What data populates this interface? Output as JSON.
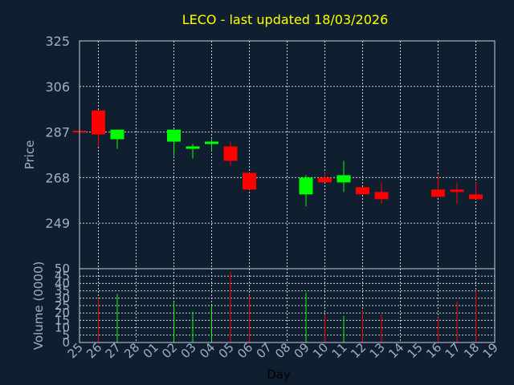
{
  "chart_data": {
    "type": "candlestick",
    "title": "LECO - last updated 18/03/2026",
    "xlabel": "Day",
    "ylabel": "Price",
    "volume_label": "Volume (0000)",
    "ylim": [
      230,
      325
    ],
    "price_ticks": [
      "325",
      "306",
      "287",
      "268",
      "249"
    ],
    "price_tick_values": [
      325,
      306,
      287,
      268,
      249
    ],
    "volume_ylim": [
      0,
      50
    ],
    "volume_ticks": [
      "50",
      "45",
      "40",
      "35",
      "30",
      "25",
      "20",
      "15",
      "10",
      "5",
      "0"
    ],
    "volume_tick_values": [
      50,
      45,
      40,
      35,
      30,
      25,
      20,
      15,
      10,
      5,
      0
    ],
    "x_labels": [
      "25",
      "26",
      "27",
      "28",
      "01",
      "02",
      "03",
      "04",
      "05",
      "06",
      "07",
      "08",
      "09",
      "10",
      "11",
      "12",
      "13",
      "14",
      "15",
      "16",
      "17",
      "18",
      "19"
    ],
    "grid": true,
    "colors": {
      "up": "#00ff00",
      "down": "#ff0000",
      "title": "#ffff00",
      "text": "#9ab2cc",
      "grid": "#c8d2dc",
      "background": "#0f1f30"
    },
    "candles": [
      {
        "x": "25",
        "open": 287.5,
        "high": 287.5,
        "low": 287.5,
        "close": 287.0,
        "volume": 0
      },
      {
        "x": "26",
        "open": 296,
        "high": 296,
        "low": 281,
        "close": 286,
        "volume": 30
      },
      {
        "x": "27",
        "open": 284,
        "high": 288,
        "low": 280,
        "close": 288,
        "volume": 33
      },
      {
        "x": "02",
        "open": 283,
        "high": 288,
        "low": 277,
        "close": 288,
        "volume": 27
      },
      {
        "x": "03",
        "open": 280,
        "high": 282,
        "low": 276,
        "close": 281,
        "volume": 21
      },
      {
        "x": "04",
        "open": 282,
        "high": 284,
        "low": 279,
        "close": 283,
        "volume": 25
      },
      {
        "x": "05",
        "open": 281,
        "high": 283,
        "low": 273,
        "close": 275,
        "volume": 48
      },
      {
        "x": "06",
        "open": 270,
        "high": 270,
        "low": 263,
        "close": 263,
        "volume": 32
      },
      {
        "x": "09",
        "open": 261,
        "high": 269,
        "low": 256,
        "close": 268,
        "volume": 34
      },
      {
        "x": "10",
        "open": 268,
        "high": 270,
        "low": 266,
        "close": 266,
        "volume": 19
      },
      {
        "x": "11",
        "open": 266,
        "high": 275,
        "low": 262,
        "close": 269,
        "volume": 18
      },
      {
        "x": "12",
        "open": 264,
        "high": 264,
        "low": 261,
        "close": 261,
        "volume": 22
      },
      {
        "x": "13",
        "open": 262,
        "high": 266,
        "low": 257,
        "close": 259,
        "volume": 19
      },
      {
        "x": "16",
        "open": 263,
        "high": 269,
        "low": 260,
        "close": 260,
        "volume": 17
      },
      {
        "x": "17",
        "open": 263,
        "high": 266,
        "low": 257,
        "close": 262,
        "volume": 28
      },
      {
        "x": "18",
        "open": 261,
        "high": 266,
        "low": 259,
        "close": 259,
        "volume": 35
      }
    ]
  }
}
